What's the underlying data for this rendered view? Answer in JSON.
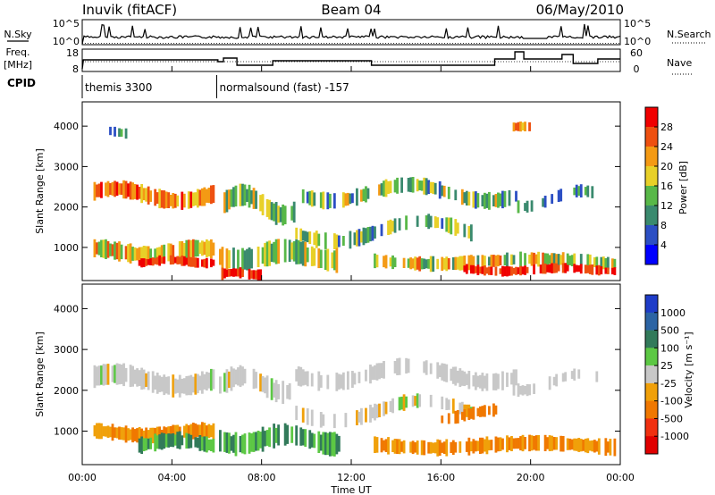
{
  "header": {
    "station": "Inuvik (fitACF)",
    "beam": "Beam 04",
    "date": "06/May/2010"
  },
  "noise_panel": {
    "left_label": "N.Sky",
    "right_label": "N.Search",
    "left_ticks": [
      "10^5",
      "10^0"
    ],
    "right_ticks": [
      "10^5",
      "10^0"
    ]
  },
  "freq_panel": {
    "left_label_line1": "Freq.",
    "left_label_line2": "[MHz]",
    "right_label": "Nave",
    "left_ticks": [
      "18",
      "8"
    ],
    "right_ticks": [
      "60",
      "0"
    ]
  },
  "cpid": {
    "label": "CPID",
    "segments": [
      {
        "name": "themis 3300",
        "start_hour": 0
      },
      {
        "name": "normalsound (fast) -157",
        "start_hour": 6
      }
    ]
  },
  "chart_data": [
    {
      "type": "heatmap",
      "name": "Power",
      "ylabel": "Slant Range [km]",
      "yticks": [
        "1000",
        "2000",
        "3000",
        "4000"
      ],
      "ylim": [
        180,
        4600
      ],
      "colorbar_label": "Power [dB]",
      "colorbar_ticks": [
        "4",
        "8",
        "12",
        "16",
        "20",
        "24",
        "28"
      ],
      "colors": [
        "#0000ff",
        "#2c4fc4",
        "#3a8a6e",
        "#58b848",
        "#e8d028",
        "#f49a14",
        "#ee5010",
        "#f00000"
      ]
    },
    {
      "type": "heatmap",
      "name": "Velocity",
      "ylabel": "Slant Range [km]",
      "yticks": [
        "1000",
        "2000",
        "3000",
        "4000"
      ],
      "ylim": [
        180,
        4600
      ],
      "colorbar_label": "Velocity [m s⁻¹]",
      "colorbar_ticks": [
        "1000",
        "500",
        "100",
        "25",
        "-25",
        "-100",
        "-500",
        "-1000"
      ],
      "colors": [
        "#1e3cc8",
        "#2c64a4",
        "#327a5a",
        "#5cc844",
        "#c8c8c8",
        "#f0a00a",
        "#f07800",
        "#f03010",
        "#e00000"
      ]
    }
  ],
  "x_axis": {
    "label": "Time UT",
    "ticks": [
      "00:00",
      "04:00",
      "08:00",
      "12:00",
      "16:00",
      "20:00",
      "00:00"
    ]
  }
}
